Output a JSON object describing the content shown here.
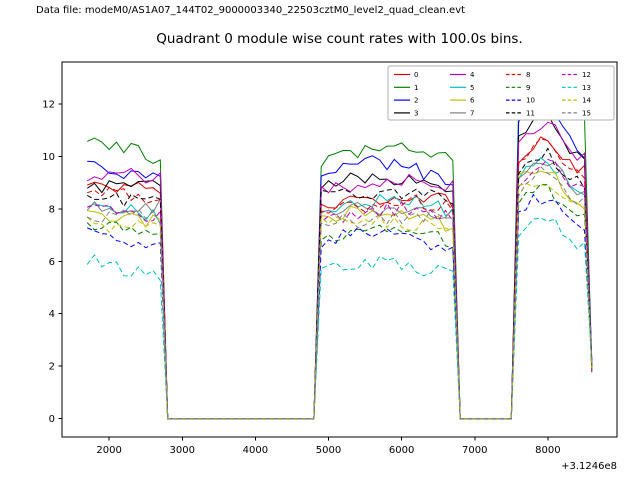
{
  "header": {
    "datafile": "Data file: modeM0/AS1A07_144T02_9000003340_22503cztM0_level2_quad_clean.evt"
  },
  "chart_data": {
    "type": "line",
    "title": "Quadrant 0 module wise count rates with 100.0s bins.",
    "xlabel": "",
    "ylabel": "",
    "x_offset_label": "+3.1246e8",
    "xlim": [
      1355,
      8945
    ],
    "ylim": [
      -0.7,
      13.6
    ],
    "xticks": [
      2000,
      3000,
      4000,
      5000,
      6000,
      7000,
      8000
    ],
    "yticks": [
      0,
      2,
      4,
      6,
      8,
      10,
      12
    ],
    "bin_seconds": 100,
    "grid": false,
    "legend_position": "upper right",
    "bursts": [
      [
        1700,
        2720
      ],
      [
        4840,
        6720
      ],
      [
        7560,
        8560
      ]
    ],
    "gap_value": 0,
    "end_drop_value": 2.0,
    "noise_amplitude": 0.28,
    "series": [
      {
        "label": "0",
        "color": "#dd0000",
        "dash": false,
        "levels": [
          8.9,
          8.1,
          9.9
        ]
      },
      {
        "label": "1",
        "color": "#008000",
        "dash": false,
        "levels": [
          10.4,
          9.9,
          11.7
        ]
      },
      {
        "label": "2",
        "color": "#0000ff",
        "dash": false,
        "levels": [
          9.6,
          9.2,
          10.8
        ]
      },
      {
        "label": "3",
        "color": "#000000",
        "dash": false,
        "levels": [
          9.1,
          8.8,
          10.5
        ]
      },
      {
        "label": "4",
        "color": "#bf00bf",
        "dash": false,
        "levels": [
          9.4,
          8.7,
          10.3
        ]
      },
      {
        "label": "5",
        "color": "#00bfbf",
        "dash": false,
        "levels": [
          8.1,
          7.9,
          8.9
        ]
      },
      {
        "label": "6",
        "color": "#bfbf00",
        "dash": false,
        "levels": [
          7.9,
          7.5,
          8.7
        ]
      },
      {
        "label": "7",
        "color": "#808080",
        "dash": false,
        "levels": [
          8.3,
          7.7,
          9.1
        ]
      },
      {
        "label": "8",
        "color": "#dd0000",
        "dash": true,
        "levels": [
          8.6,
          7.9,
          9.6
        ]
      },
      {
        "label": "9",
        "color": "#008000",
        "dash": true,
        "levels": [
          7.3,
          6.9,
          7.9
        ]
      },
      {
        "label": "10",
        "color": "#0000ff",
        "dash": true,
        "levels": [
          7.1,
          6.7,
          7.7
        ]
      },
      {
        "label": "11",
        "color": "#000000",
        "dash": true,
        "levels": [
          8.5,
          8.3,
          9.3
        ]
      },
      {
        "label": "12",
        "color": "#bf00bf",
        "dash": true,
        "levels": [
          8.0,
          7.6,
          8.9
        ]
      },
      {
        "label": "13",
        "color": "#00bfbf",
        "dash": true,
        "levels": [
          5.9,
          5.6,
          6.9
        ]
      },
      {
        "label": "14",
        "color": "#bfbf00",
        "dash": true,
        "levels": [
          7.6,
          7.3,
          8.4
        ]
      },
      {
        "label": "15",
        "color": "#808080",
        "dash": true,
        "levels": [
          7.8,
          7.4,
          8.6
        ]
      }
    ]
  }
}
